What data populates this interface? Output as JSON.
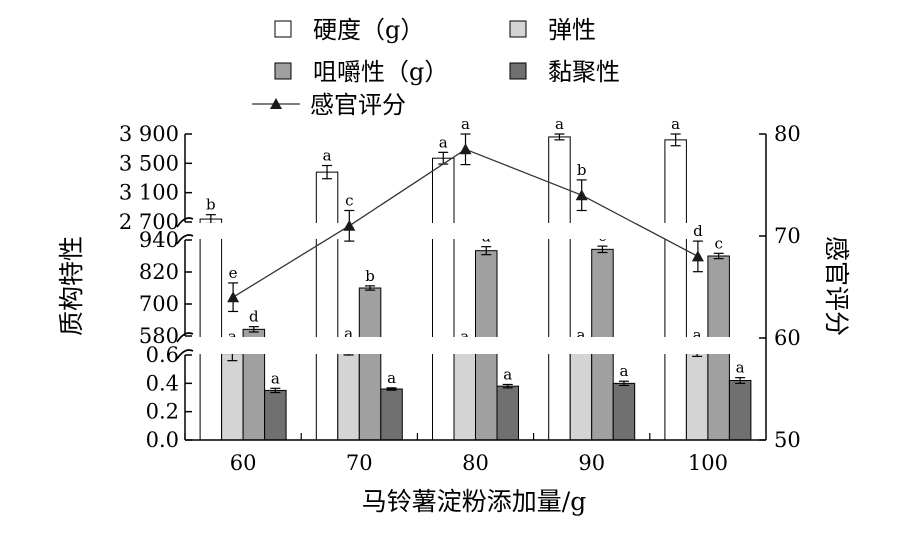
{
  "chart_data": {
    "type": "bar",
    "categories": [
      "60",
      "70",
      "80",
      "90",
      "100"
    ],
    "xlabel": "马铃薯淀粉添加量/g",
    "ylabel_left": "质构特性",
    "ylabel_right": "感官评分",
    "left_axis_segments": {
      "bottom": {
        "range": [
          0.0,
          0.6
        ],
        "ticks": [
          "0.0",
          "0.2",
          "0.4",
          "0.6"
        ]
      },
      "middle": {
        "range": [
          580,
          940
        ],
        "ticks": [
          "580",
          "700",
          "820",
          "940"
        ]
      },
      "top": {
        "range": [
          2700,
          3900
        ],
        "ticks": [
          "2 700",
          "3 100",
          "3 500",
          "3 900"
        ]
      }
    },
    "right_axis": {
      "range": [
        50,
        80
      ],
      "ticks": [
        "50",
        "60",
        "70",
        "80"
      ]
    },
    "legend_position": "top",
    "series": [
      {
        "name": "硬度（g）",
        "axis_segment": "top",
        "color": "#ffffff",
        "values": [
          2740,
          3380,
          3570,
          3860,
          3820
        ],
        "errors": [
          60,
          90,
          80,
          40,
          80
        ],
        "letters": [
          "b",
          "a",
          "a",
          "a",
          "a"
        ]
      },
      {
        "name": "弹性",
        "axis_segment": "bottom",
        "color": "#d4d4d4",
        "values": [
          0.61,
          0.64,
          0.64,
          0.65,
          0.63
        ],
        "errors": [
          0.05,
          0.04,
          0.02,
          0.02,
          0.04
        ],
        "letters": [
          "a",
          "a",
          "a",
          "a",
          "a"
        ]
      },
      {
        "name": "咀嚼性（g）",
        "axis_segment": "middle",
        "color": "#a0a0a0",
        "values": [
          605,
          760,
          900,
          905,
          880
        ],
        "errors": [
          10,
          8,
          15,
          12,
          10
        ],
        "letters": [
          "d",
          "b",
          "a",
          "c",
          "c"
        ]
      },
      {
        "name": "黏聚性",
        "axis_segment": "bottom",
        "color": "#707070",
        "values": [
          0.35,
          0.36,
          0.38,
          0.4,
          0.42
        ],
        "errors": [
          0.015,
          0.008,
          0.012,
          0.015,
          0.02
        ],
        "letters": [
          "a",
          "a",
          "a",
          "a",
          "a"
        ]
      }
    ],
    "line": {
      "name": "感官评分",
      "axis": "right",
      "values": [
        64,
        71,
        78.5,
        74,
        68
      ],
      "errors": [
        1.4,
        1.5,
        1.5,
        1.5,
        1.5
      ],
      "letters": [
        "e",
        "c",
        "a",
        "b",
        "d"
      ]
    },
    "colors": {
      "axis": "#000000",
      "line": "#333333"
    }
  }
}
